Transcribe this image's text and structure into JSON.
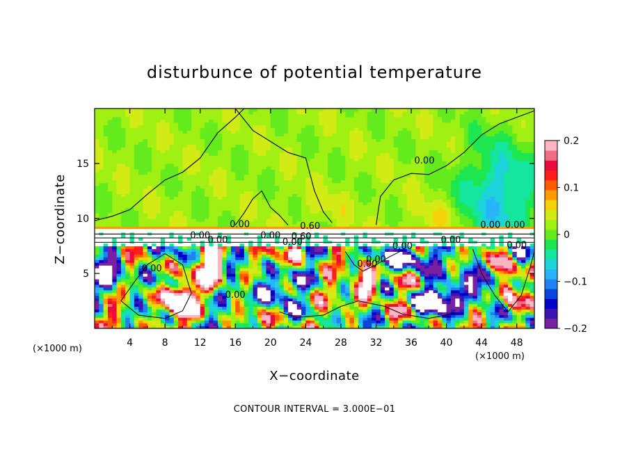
{
  "chart_data": {
    "type": "heatmap",
    "title": "disturbunce of potential temperature",
    "xlabel": "X−coordinate",
    "ylabel": "Z−coordinate",
    "x_multiplier": "(×1000 m)",
    "y_multiplier": "(×1000 m)",
    "xlim": [
      0,
      50
    ],
    "ylim": [
      0,
      20
    ],
    "x_ticks": [
      4,
      8,
      12,
      16,
      20,
      24,
      28,
      32,
      36,
      40,
      44,
      48
    ],
    "y_ticks": [
      5,
      10,
      15
    ],
    "colorbar": {
      "range": [
        -0.2,
        0.2
      ],
      "ticks": [
        {
          "value": 0.2,
          "label": "0.2"
        },
        {
          "value": 0.1,
          "label": "0.1"
        },
        {
          "value": 0,
          "label": "0"
        },
        {
          "value": -0.1,
          "label": "−0.1"
        },
        {
          "value": -0.2,
          "label": "−0.2"
        }
      ],
      "colors": [
        "#7a1fa2",
        "#3c14b4",
        "#0000c8",
        "#0a46dc",
        "#1e82f0",
        "#28b4f8",
        "#1ed2dc",
        "#14e6a0",
        "#1ee650",
        "#64eb1e",
        "#a0f014",
        "#d2eb14",
        "#f5d20a",
        "#ff9b00",
        "#ff5a00",
        "#ff1e1e",
        "#eb0a3c",
        "#f06e82",
        "#ffb4c3"
      ]
    },
    "contour_interval": "CONTOUR INTERVAL = 3.000E−01",
    "contour_labels": [
      "0.00",
      "0.00",
      "0.00",
      "0.00",
      "0.00",
      "0.00",
      "0.60",
      "0.60",
      "0.00",
      "0.00",
      "0.00",
      "0.00",
      "0.00",
      "0.00",
      "0.00",
      "0.00",
      "0.00"
    ]
  }
}
